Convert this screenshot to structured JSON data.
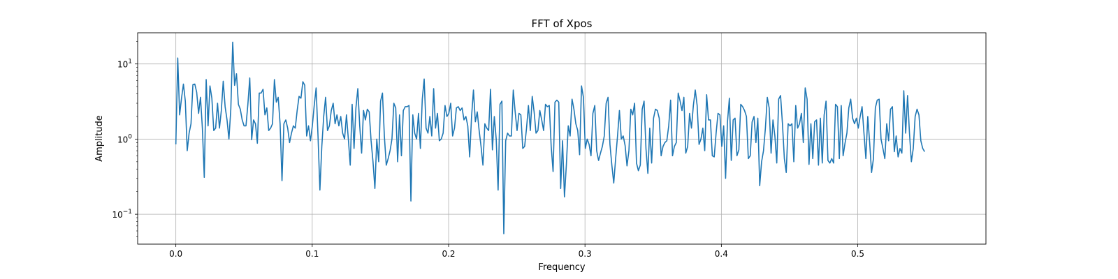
{
  "chart_data": {
    "type": "line",
    "title": "FFT of Xpos",
    "xlabel": "Frequency",
    "ylabel": "Amplitude",
    "yscale": "log",
    "grid": true,
    "xlim": [
      -0.028,
      0.594
    ],
    "ylim": [
      0.04,
      26
    ],
    "x_ticks": [
      0.0,
      0.1,
      0.2,
      0.3,
      0.4,
      0.5
    ],
    "x_tick_labels": [
      "0.0",
      "0.1",
      "0.2",
      "0.3",
      "0.4",
      "0.5"
    ],
    "y_ticks": [
      0.1,
      1,
      10
    ],
    "y_tick_labels": [
      {
        "base": "10",
        "exp": "−1"
      },
      {
        "base": "10",
        "exp": "0"
      },
      {
        "base": "10",
        "exp": "1"
      }
    ],
    "series": [
      {
        "color": "#1f77b4",
        "x_start": 0.0,
        "x_step": 0.00139,
        "values": [
          0.85,
          12.0,
          2.1,
          3.5,
          5.4,
          3.2,
          0.7,
          1.2,
          1.6,
          5.3,
          5.4,
          4.2,
          2.2,
          3.6,
          1.4,
          0.31,
          6.2,
          1.5,
          5.1,
          3.5,
          1.3,
          1.4,
          3.0,
          1.4,
          2.4,
          5.9,
          2.7,
          1.8,
          1.0,
          2.5,
          19.5,
          5.2,
          7.4,
          2.9,
          2.5,
          1.8,
          1.5,
          1.5,
          2.9,
          6.5,
          0.98,
          1.8,
          1.6,
          0.88,
          4.1,
          4.1,
          4.6,
          2.1,
          2.6,
          1.3,
          1.4,
          1.6,
          6.2,
          3.1,
          3.6,
          1.6,
          0.28,
          1.6,
          1.8,
          1.4,
          0.9,
          1.2,
          1.5,
          1.4,
          2.4,
          3.7,
          3.5,
          5.8,
          5.2,
          1.1,
          1.5,
          0.95,
          1.5,
          2.8,
          4.8,
          1.1,
          0.21,
          0.8,
          2.0,
          3.6,
          1.3,
          1.5,
          2.4,
          3.0,
          1.6,
          2.1,
          1.5,
          2.0,
          1.2,
          1.0,
          2.1,
          1.0,
          0.45,
          2.9,
          0.75,
          2.6,
          4.7,
          1.5,
          0.65,
          2.4,
          1.8,
          2.5,
          2.3,
          0.95,
          0.5,
          0.22,
          1.0,
          0.5,
          3.2,
          4.1,
          1.1,
          0.45,
          0.55,
          0.7,
          1.0,
          3.0,
          2.6,
          0.5,
          2.1,
          0.6,
          2.4,
          2.7,
          2.7,
          2.8,
          0.15,
          2.1,
          1.2,
          1.0,
          2.2,
          0.75,
          3.4,
          6.3,
          1.4,
          1.2,
          2.0,
          1.1,
          4.7,
          1.4,
          2.2,
          0.95,
          1.0,
          1.2,
          2.8,
          2.0,
          2.2,
          3.0,
          1.1,
          1.4,
          2.6,
          2.7,
          2.4,
          2.6,
          1.8,
          2.0,
          1.5,
          0.58,
          2.0,
          4.5,
          1.7,
          2.3,
          1.3,
          0.8,
          0.45,
          1.6,
          1.4,
          1.3,
          4.6,
          0.72,
          2.0,
          1.0,
          0.21,
          2.9,
          3.2,
          0.055,
          0.95,
          1.2,
          1.1,
          1.1,
          4.5,
          2.3,
          1.3,
          2.2,
          2.1,
          0.75,
          0.8,
          1.4,
          2.8,
          1.3,
          3.7,
          2.3,
          1.2,
          1.3,
          2.4,
          1.8,
          1.3,
          2.9,
          2.7,
          2.8,
          0.8,
          0.37,
          3.1,
          3.3,
          3.1,
          0.22,
          0.95,
          0.17,
          0.45,
          1.5,
          1.1,
          3.4,
          2.5,
          1.6,
          1.3,
          0.62,
          5.1,
          3.6,
          0.75,
          1.0,
          0.85,
          0.6,
          2.2,
          2.8,
          0.7,
          0.52,
          0.65,
          0.8,
          1.1,
          3.0,
          3.6,
          0.85,
          0.45,
          0.26,
          0.55,
          1.1,
          2.4,
          1.0,
          1.1,
          0.82,
          0.44,
          0.7,
          2.5,
          2.1,
          3.0,
          0.48,
          0.38,
          0.45,
          2.5,
          3.2,
          0.75,
          0.35,
          1.4,
          0.48,
          1.9,
          2.5,
          2.4,
          1.9,
          0.6,
          0.8,
          0.9,
          0.95,
          1.5,
          3.3,
          0.6,
          0.8,
          0.9,
          4.1,
          3.2,
          2.4,
          3.6,
          0.65,
          0.8,
          2.2,
          1.4,
          2.8,
          4.5,
          2.8,
          0.85,
          1.0,
          1.4,
          0.7,
          3.9,
          1.8,
          1.8,
          0.6,
          0.58,
          1.2,
          2.2,
          2.1,
          0.8,
          1.5,
          0.3,
          1.7,
          3.5,
          0.52,
          1.8,
          1.9,
          0.6,
          0.72,
          2.9,
          2.7,
          2.4,
          2.0,
          0.55,
          0.6,
          1.7,
          2.0,
          0.9,
          1.9,
          0.24,
          0.5,
          0.7,
          1.4,
          3.6,
          2.6,
          0.65,
          1.8,
          1.1,
          0.48,
          3.4,
          3.8,
          1.6,
          0.55,
          0.36,
          1.6,
          1.5,
          1.6,
          0.5,
          2.8,
          1.4,
          1.6,
          2.2,
          0.9,
          4.8,
          3.4,
          0.46,
          1.6,
          0.55,
          1.7,
          1.8,
          0.45,
          1.9,
          0.48,
          2.1,
          3.2,
          0.52,
          0.48,
          0.55,
          0.48,
          2.9,
          2.7,
          0.55,
          2.8,
          0.6,
          0.88,
          1.2,
          2.6,
          3.4,
          1.9,
          1.6,
          1.9,
          1.4,
          2.0,
          2.7,
          1.2,
          0.55,
          2.0,
          0.9,
          0.36,
          0.55,
          2.6,
          3.3,
          3.4,
          1.0,
          0.75,
          0.55,
          1.6,
          0.95,
          2.5,
          2.7,
          0.68,
          1.1,
          0.58,
          0.75,
          0.65,
          4.4,
          1.2,
          3.8,
          1.2,
          0.5,
          0.75,
          2.0,
          2.5,
          2.1,
          0.95,
          0.75,
          0.68
        ]
      }
    ]
  }
}
